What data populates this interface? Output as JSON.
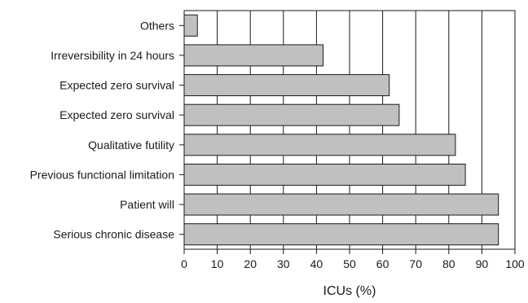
{
  "chart_data": {
    "type": "bar",
    "orientation": "horizontal",
    "categories": [
      "Others",
      "Irreversibility in 24 hours",
      "Expected zero survival",
      "Expected zero survival",
      "Qualitative futility",
      "Previous functional limitation",
      "Patient will",
      "Serious chronic disease"
    ],
    "values": [
      4,
      42,
      62,
      65,
      82,
      85,
      95,
      95
    ],
    "title": "",
    "xlabel": "ICUs (%)",
    "ylabel": "",
    "xlim": [
      0,
      100
    ],
    "xticks": [
      0,
      10,
      20,
      30,
      40,
      50,
      60,
      70,
      80,
      90,
      100
    ],
    "grid": "vertical",
    "legend": "none",
    "bar_color": "#c0c0c0",
    "bar_edge_color": "#1a1a1a",
    "axis_color": "#1a1a1a"
  }
}
